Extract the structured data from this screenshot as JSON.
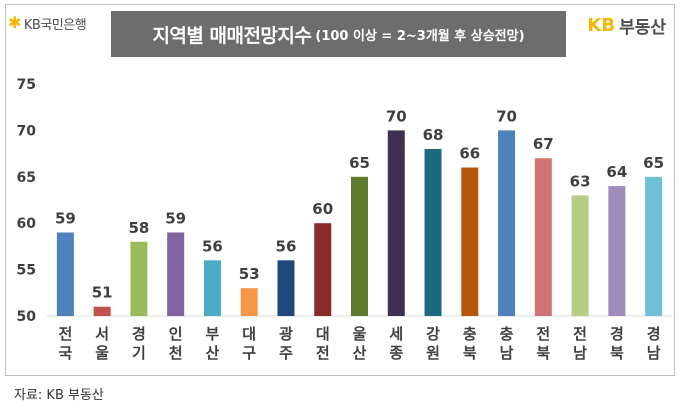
{
  "logo_left": {
    "icon": "star-icon",
    "text": "KB국민은행"
  },
  "logo_right": {
    "prefix": "KB",
    "text": "부동산"
  },
  "title": {
    "main": "지역별 매매전망지수",
    "sub": "(100 이상 = 2~3개월 후 상승전망)"
  },
  "source": "자료: KB 부동산",
  "chart_data": {
    "type": "bar",
    "title": "지역별 매매전망지수 (100 이상 = 2~3개월 후 상승전망)",
    "xlabel": "",
    "ylabel": "",
    "ylim": [
      50,
      75
    ],
    "yticks": [
      50,
      55,
      60,
      65,
      70,
      75
    ],
    "grid": false,
    "legend": "none",
    "categories": [
      "전국",
      "서울",
      "경기",
      "인천",
      "부산",
      "대구",
      "광주",
      "대전",
      "울산",
      "세종",
      "강원",
      "충북",
      "충남",
      "전북",
      "전남",
      "경북",
      "경남"
    ],
    "values": [
      59,
      51,
      58,
      59,
      56,
      53,
      56,
      60,
      65,
      70,
      68,
      66,
      70,
      67,
      63,
      64,
      65
    ],
    "colors": [
      "#4f81bd",
      "#c0504d",
      "#9bbb59",
      "#8064a2",
      "#4bacc6",
      "#f79646",
      "#1f497d",
      "#8b2c2b",
      "#5e7b2f",
      "#3f3151",
      "#1c6a80",
      "#b65708",
      "#4f81bd",
      "#d07473",
      "#b6cd83",
      "#a08cbc",
      "#6fbfd6"
    ]
  }
}
